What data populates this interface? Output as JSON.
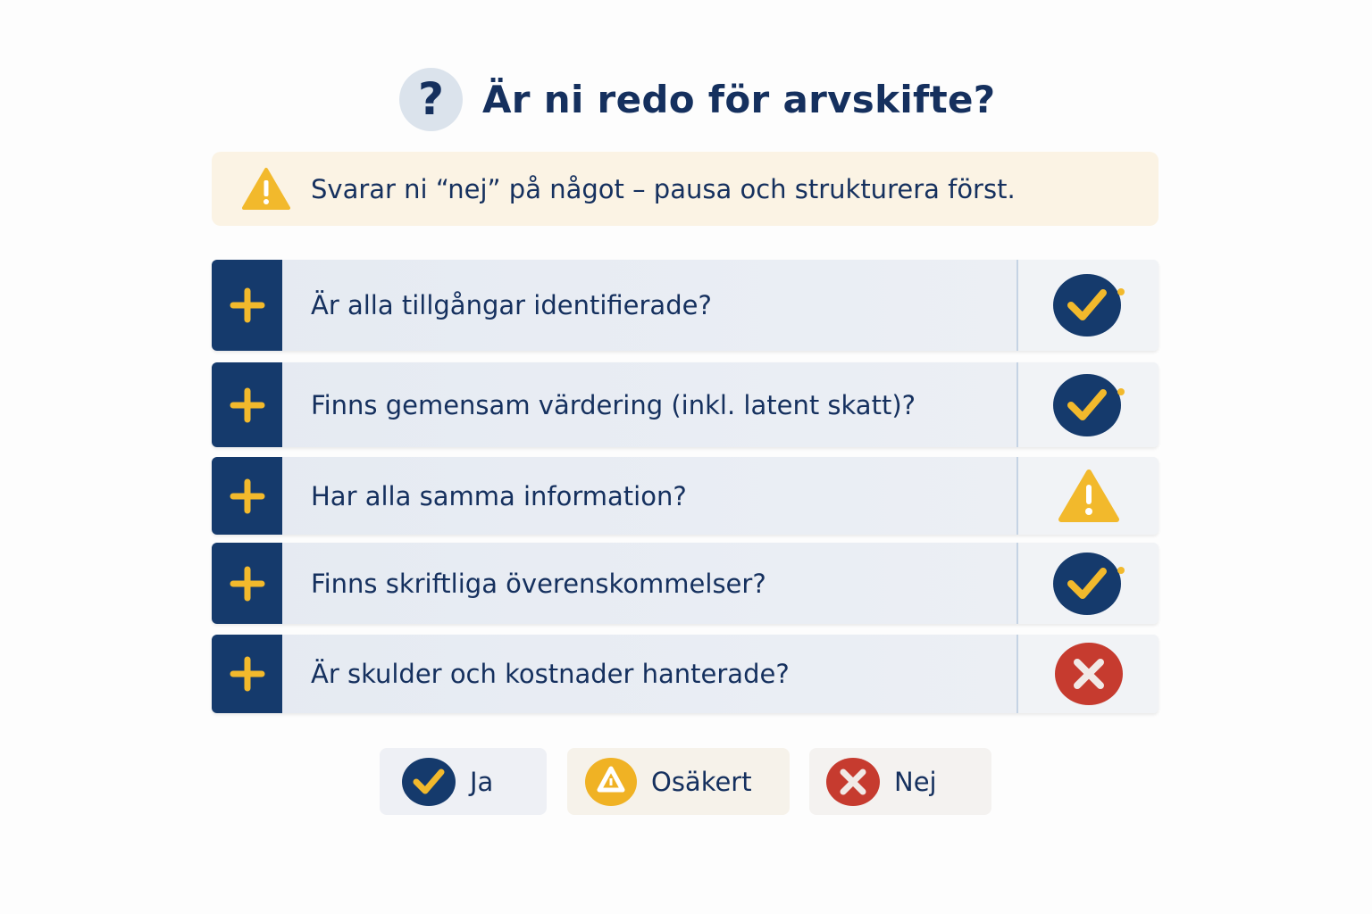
{
  "header": {
    "icon": "question-icon",
    "glyph": "?",
    "title": "Är ni redo för arvskifte?"
  },
  "banner": {
    "icon": "warning-icon",
    "text": "Svarar ni “nej” på något – pausa och strukturera först."
  },
  "colors": {
    "navy": "#153a6c",
    "yellow": "#f2b92c",
    "red": "#c63b2f",
    "warning_bg": "#fbf3e4"
  },
  "questions": [
    {
      "text": "Är alla tillgångar identifierade?",
      "status": "ja"
    },
    {
      "text": "Finns gemensam värdering (inkl. latent skatt)?",
      "status": "ja"
    },
    {
      "text": "Har alla samma information?",
      "status": "osakert"
    },
    {
      "text": "Finns skriftliga överenskommelser?",
      "status": "ja"
    },
    {
      "text": "Är skulder och kostnader hanterade?",
      "status": "nej"
    }
  ],
  "legend": {
    "ja": "Ja",
    "osakert": "Osäkert",
    "nej": "Nej"
  }
}
